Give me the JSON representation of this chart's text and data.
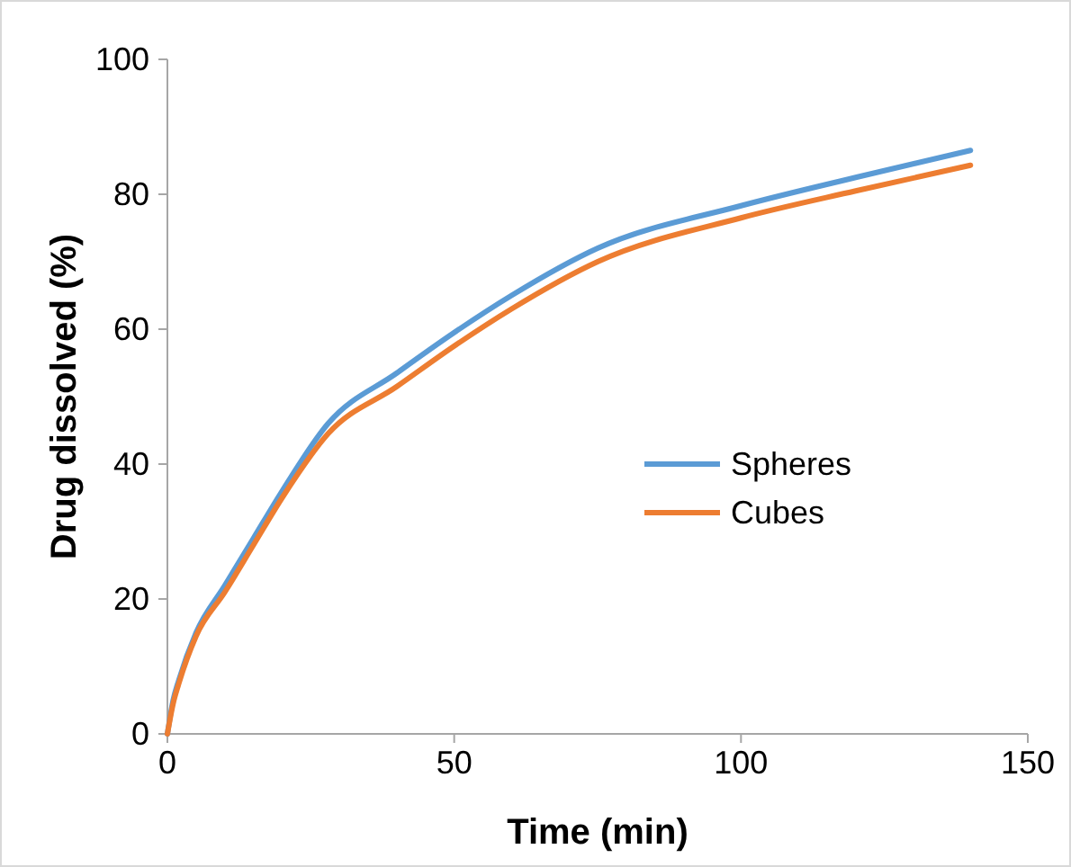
{
  "chart_data": {
    "type": "line",
    "xlabel": "Time (min)",
    "ylabel": "Drug dissolved (%)",
    "xlim": [
      0,
      150
    ],
    "xticks": [
      0,
      50,
      100,
      150
    ],
    "ylim": [
      0,
      100
    ],
    "yticks": [
      0,
      20,
      40,
      60,
      80,
      100
    ],
    "grid": false,
    "legend": "right",
    "marker": "none",
    "line_style": "solid",
    "x": [
      0,
      1,
      2,
      5,
      10,
      15,
      20,
      28,
      40,
      50,
      60,
      75,
      100,
      120,
      140
    ],
    "series": [
      {
        "name": "Spheres",
        "color": "#5b9bd5",
        "values": [
          0,
          5,
          8,
          15,
          22,
          29,
          36,
          46,
          53.5,
          59.5,
          65,
          72,
          78.3,
          82.5,
          86.5
        ]
      },
      {
        "name": "Cubes",
        "color": "#ed7d31",
        "values": [
          0,
          4.5,
          7.5,
          14.5,
          21,
          28,
          35,
          44.5,
          51.5,
          57.5,
          63,
          70,
          76.5,
          80.5,
          84.3
        ]
      }
    ]
  }
}
